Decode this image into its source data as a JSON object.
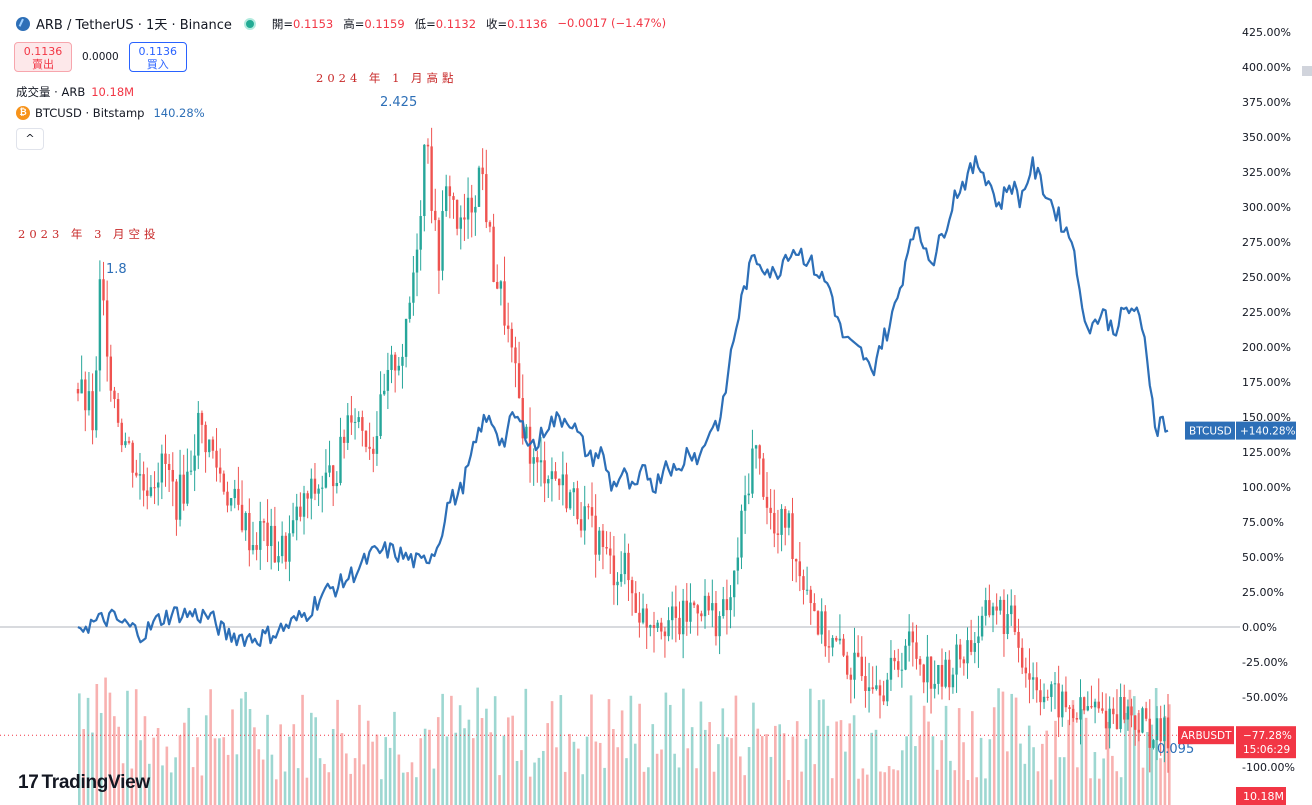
{
  "header": {
    "symbol": "ARB / TetherUS · 1天 · Binance",
    "open_label": "開=",
    "open": "0.1153",
    "high_label": "高=",
    "high": "0.1159",
    "low_label": "低=",
    "low": "0.1132",
    "close_label": "收=",
    "close": "0.1136",
    "change": "−0.0017 (−1.47%)"
  },
  "trade": {
    "sell_price": "0.1136",
    "sell_label": "賣出",
    "spread": "0.0000",
    "buy_price": "0.1136",
    "buy_label": "買入"
  },
  "legend": {
    "volume_label": "成交量 · ARB",
    "volume_value": "10.18M",
    "btc_label": "BTCUSD · Bitstamp",
    "btc_value": "140.28%",
    "collapse_glyph": "^"
  },
  "annotations": {
    "airdrop": "2023 年 3 月空投",
    "ath": "2024 年 1 月高點",
    "airdrop_price": "1.8",
    "ath_price": "2.425",
    "current_price": "0.095"
  },
  "branding": {
    "mark": "17",
    "name": "TradingView"
  },
  "chart_data": {
    "type": "line",
    "y_axis": {
      "unit": "%",
      "ylim": [
        -105,
        430
      ],
      "ticks": [
        "425.00%",
        "400.00%",
        "375.00%",
        "350.00%",
        "325.00%",
        "300.00%",
        "275.00%",
        "250.00%",
        "225.00%",
        "200.00%",
        "175.00%",
        "150.00%",
        "125.00%",
        "100.00%",
        "75.00%",
        "50.00%",
        "25.00%",
        "0.00%",
        "-25.00%",
        "-50.00%",
        "-75.00%",
        "-100.00%"
      ],
      "tick_values": [
        425,
        400,
        375,
        350,
        325,
        300,
        275,
        250,
        225,
        200,
        175,
        150,
        125,
        100,
        75,
        50,
        25,
        0,
        -25,
        -50,
        -75,
        -100
      ]
    },
    "x_range": [
      0,
      100
    ],
    "series": [
      {
        "name": "BTCUSD",
        "type": "line",
        "color": "#2d6fb7",
        "tag": "BTCUSD",
        "tag_value": "+140.28%",
        "last": 140.28,
        "points": [
          [
            0,
            0
          ],
          [
            1.5,
            3
          ],
          [
            3,
            7
          ],
          [
            4.5,
            1
          ],
          [
            6,
            -5
          ],
          [
            7.5,
            6
          ],
          [
            9,
            10
          ],
          [
            10.5,
            9
          ],
          [
            12,
            8
          ],
          [
            13.5,
            -5
          ],
          [
            15,
            -7
          ],
          [
            16.5,
            -8
          ],
          [
            18,
            -4
          ],
          [
            19.5,
            2
          ],
          [
            21,
            10
          ],
          [
            22.5,
            24
          ],
          [
            24,
            30
          ],
          [
            25.5,
            40
          ],
          [
            27,
            52
          ],
          [
            28.5,
            55
          ],
          [
            30,
            50
          ],
          [
            31.5,
            45
          ],
          [
            33,
            58
          ],
          [
            34,
            90
          ],
          [
            35,
            95
          ],
          [
            36,
            118
          ],
          [
            37,
            145
          ],
          [
            38,
            148
          ],
          [
            39,
            130
          ],
          [
            40,
            152
          ],
          [
            41,
            140
          ],
          [
            42,
            128
          ],
          [
            43,
            145
          ],
          [
            44,
            148
          ],
          [
            45,
            150
          ],
          [
            46,
            135
          ],
          [
            47,
            120
          ],
          [
            48,
            125
          ],
          [
            49,
            100
          ],
          [
            50,
            110
          ],
          [
            51,
            95
          ],
          [
            52,
            113
          ],
          [
            53,
            100
          ],
          [
            54,
            120
          ],
          [
            55,
            108
          ],
          [
            56,
            128
          ],
          [
            57,
            120
          ],
          [
            58,
            142
          ],
          [
            59,
            148
          ],
          [
            60,
            200
          ],
          [
            61,
            238
          ],
          [
            62,
            265
          ],
          [
            63,
            258
          ],
          [
            64,
            250
          ],
          [
            65,
            268
          ],
          [
            66,
            270
          ],
          [
            67,
            262
          ],
          [
            68,
            252
          ],
          [
            69,
            242
          ],
          [
            70,
            210
          ],
          [
            71,
            200
          ],
          [
            72,
            195
          ],
          [
            72.8,
            180
          ],
          [
            73.5,
            200
          ],
          [
            74.5,
            215
          ],
          [
            75.5,
            245
          ],
          [
            76.5,
            285
          ],
          [
            77.5,
            275
          ],
          [
            78.5,
            262
          ],
          [
            79.5,
            285
          ],
          [
            80.5,
            310
          ],
          [
            81.5,
            320
          ],
          [
            82.5,
            332
          ],
          [
            83.5,
            320
          ],
          [
            84.5,
            300
          ],
          [
            85.5,
            318
          ],
          [
            86.5,
            305
          ],
          [
            87.5,
            330
          ],
          [
            88.5,
            315
          ],
          [
            89.5,
            300
          ],
          [
            90.5,
            285
          ],
          [
            91.5,
            272
          ],
          [
            92,
            225
          ],
          [
            93,
            215
          ],
          [
            94,
            225
          ],
          [
            95,
            212
          ],
          [
            96,
            225
          ],
          [
            97,
            228
          ],
          [
            97.6,
            210
          ],
          [
            98,
            200
          ],
          [
            98.5,
            165
          ],
          [
            99,
            140
          ],
          [
            99.5,
            150
          ],
          [
            100,
            140.28
          ]
        ]
      },
      {
        "name": "ARBUSDT",
        "type": "candlestick",
        "tag": "ARBUSDT",
        "tag_value": "−77.28%",
        "tag_time": "15:06:29",
        "last": -77.28,
        "points": [
          [
            0,
            170
          ],
          [
            1,
            155
          ],
          [
            1.5,
            140
          ],
          [
            2,
            240
          ],
          [
            2.5,
            220
          ],
          [
            3,
            180
          ],
          [
            3.5,
            160
          ],
          [
            4,
            140
          ],
          [
            5,
            120
          ],
          [
            6,
            100
          ],
          [
            7,
            110
          ],
          [
            8,
            115
          ],
          [
            9,
            90
          ],
          [
            10,
            105
          ],
          [
            11,
            145
          ],
          [
            12,
            130
          ],
          [
            13,
            110
          ],
          [
            14,
            90
          ],
          [
            15,
            80
          ],
          [
            16,
            60
          ],
          [
            17,
            70
          ],
          [
            18,
            55
          ],
          [
            19,
            55
          ],
          [
            20,
            75
          ],
          [
            21,
            90
          ],
          [
            22,
            100
          ],
          [
            23,
            105
          ],
          [
            24,
            120
          ],
          [
            25,
            160
          ],
          [
            26,
            145
          ],
          [
            27,
            130
          ],
          [
            28,
            160
          ],
          [
            29,
            190
          ],
          [
            30,
            200
          ],
          [
            31,
            270
          ],
          [
            31.5,
            310
          ],
          [
            32,
            368
          ],
          [
            32.5,
            300
          ],
          [
            33,
            260
          ],
          [
            34,
            320
          ],
          [
            35,
            280
          ],
          [
            36,
            300
          ],
          [
            37,
            330
          ],
          [
            38,
            260
          ],
          [
            39,
            230
          ],
          [
            40,
            180
          ],
          [
            41,
            140
          ],
          [
            42,
            110
          ],
          [
            43,
            115
          ],
          [
            44,
            105
          ],
          [
            45,
            95
          ],
          [
            46,
            85
          ],
          [
            47,
            70
          ],
          [
            48,
            60
          ],
          [
            49,
            40
          ],
          [
            50,
            45
          ],
          [
            51,
            20
          ],
          [
            52,
            5
          ],
          [
            53,
            10
          ],
          [
            54,
            5
          ],
          [
            55,
            0
          ],
          [
            56,
            10
          ],
          [
            57,
            20
          ],
          [
            58,
            10
          ],
          [
            59,
            5
          ],
          [
            60,
            20
          ],
          [
            61,
            80
          ],
          [
            62,
            130
          ],
          [
            63,
            100
          ],
          [
            64,
            60
          ],
          [
            65,
            80
          ],
          [
            66,
            45
          ],
          [
            67,
            30
          ],
          [
            68,
            0
          ],
          [
            69,
            -10
          ],
          [
            70,
            -20
          ],
          [
            71,
            -30
          ],
          [
            72,
            -35
          ],
          [
            73,
            -30
          ],
          [
            74,
            -40
          ],
          [
            75,
            -30
          ],
          [
            76,
            -10
          ],
          [
            77,
            -20
          ],
          [
            78,
            -30
          ],
          [
            79,
            -40
          ],
          [
            80,
            -30
          ],
          [
            81,
            -20
          ],
          [
            82,
            -10
          ],
          [
            83,
            0
          ],
          [
            84,
            20
          ],
          [
            85,
            5
          ],
          [
            86,
            0
          ],
          [
            87,
            -30
          ],
          [
            88,
            -40
          ],
          [
            89,
            -50
          ],
          [
            90,
            -55
          ],
          [
            91,
            -60
          ],
          [
            92,
            -62
          ],
          [
            93,
            -58
          ],
          [
            94,
            -63
          ],
          [
            95,
            -60
          ],
          [
            96,
            -58
          ],
          [
            97,
            -66
          ],
          [
            98,
            -72
          ],
          [
            99,
            -78
          ],
          [
            100,
            -77.28
          ]
        ]
      }
    ],
    "volume": {
      "name": "成交量 · ARB",
      "last": "10.18M",
      "tag": "10.18M",
      "colors": [
        "#26a69a",
        "#ef5350"
      ]
    }
  }
}
